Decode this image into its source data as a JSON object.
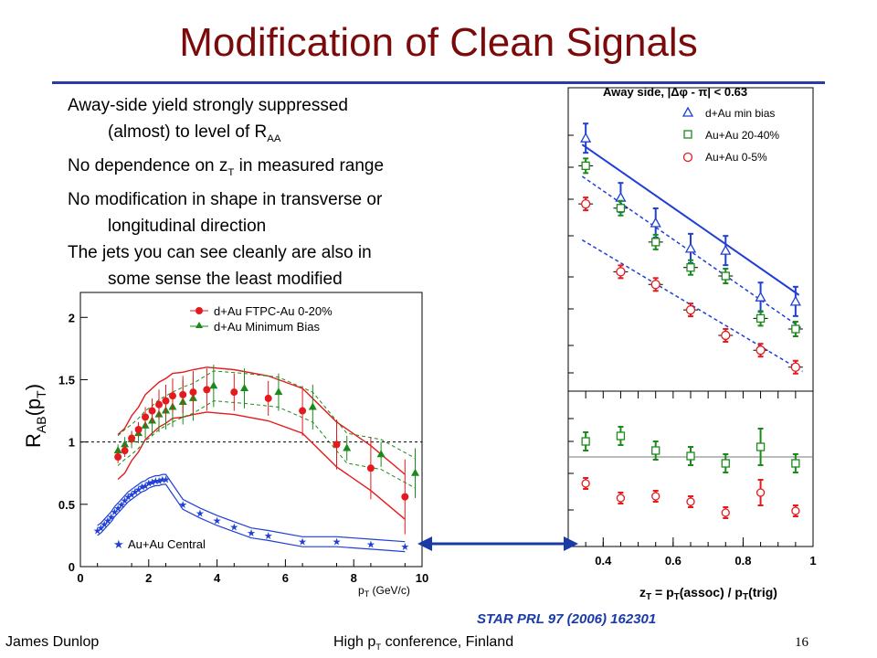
{
  "slide": {
    "title": "Modification of Clean Signals",
    "footer_left": "James Dunlop",
    "footer_center_prefix": "High p",
    "footer_center_sub": "T",
    "footer_center_suffix": " conference, Finland",
    "page_number": "16",
    "citation": "STAR PRL 97 (2006) 162301"
  },
  "bullets": {
    "b1_line1": "Away-side yield strongly suppressed",
    "b1_line2_prefix": "(almost) to level of R",
    "b1_line2_sub": "AA",
    "b2_prefix": "No dependence on z",
    "b2_sub": "T",
    "b2_suffix": " in measured range",
    "b3_line1": "No modification in shape in transverse or",
    "b3_line2": "longitudinal direction",
    "b4_line1": "The jets you can see cleanly are also in",
    "b4_line2": "some sense the least modified"
  },
  "colors": {
    "title": "#7b0a0a",
    "red": "#e41a1c",
    "green": "#1a8a1a",
    "blue": "#1f3fd6",
    "arrow": "#1a3aa8"
  },
  "chart_data": [
    {
      "type": "scatter",
      "ylabel_main": "R",
      "ylabel_sub": "AB",
      "ylabel_suffix": "(p",
      "ylabel_sub2": "T",
      "ylabel_end": ")",
      "xlabel_main": "p",
      "xlabel_sub": "T",
      "xlabel_suffix": " (GeV/c)",
      "xlim": [
        0,
        10
      ],
      "ylim": [
        0,
        2.2
      ],
      "x_ticks": [
        "0",
        "2",
        "4",
        "6",
        "8",
        "10"
      ],
      "y_ticks": [
        "0",
        "0.5",
        "1",
        "1.5",
        "2"
      ],
      "reference_line": 1,
      "legend_position": "top-right",
      "series": [
        {
          "name": "d+Au FTPC-Au 0-20%",
          "marker": "circle",
          "color": "#e41a1c",
          "x": [
            1.1,
            1.3,
            1.5,
            1.7,
            1.9,
            2.1,
            2.3,
            2.5,
            2.7,
            3.0,
            3.3,
            3.7,
            4.5,
            5.5,
            6.5,
            7.5,
            8.5,
            9.5
          ],
          "y": [
            0.88,
            0.93,
            1.03,
            1.1,
            1.2,
            1.25,
            1.3,
            1.33,
            1.37,
            1.38,
            1.4,
            1.42,
            1.4,
            1.35,
            1.25,
            0.98,
            0.79,
            0.56
          ],
          "err": [
            0.05,
            0.05,
            0.05,
            0.06,
            0.08,
            0.1,
            0.12,
            0.13,
            0.14,
            0.15,
            0.17,
            0.17,
            0.15,
            0.14,
            0.2,
            0.2,
            0.25,
            0.3
          ]
        },
        {
          "name": "d+Au Minimum Bias",
          "marker": "triangle",
          "color": "#1a8a1a",
          "x": [
            1.1,
            1.3,
            1.5,
            1.7,
            1.9,
            2.1,
            2.3,
            2.5,
            2.7,
            3.0,
            3.3,
            3.9,
            4.8,
            5.8,
            6.8,
            7.8,
            8.8,
            9.8
          ],
          "y": [
            0.93,
            0.98,
            1.02,
            1.07,
            1.13,
            1.17,
            1.22,
            1.25,
            1.28,
            1.32,
            1.35,
            1.45,
            1.43,
            1.4,
            1.28,
            0.95,
            0.9,
            0.75
          ],
          "err": [
            0.05,
            0.06,
            0.07,
            0.08,
            0.1,
            0.12,
            0.14,
            0.15,
            0.16,
            0.18,
            0.18,
            0.17,
            0.16,
            0.15,
            0.18,
            0.1,
            0.1,
            0.2
          ]
        },
        {
          "name": "Au+Au Central",
          "marker": "star",
          "color": "#1f3fd6",
          "x": [
            0.5,
            0.6,
            0.7,
            0.8,
            0.9,
            1.0,
            1.1,
            1.2,
            1.3,
            1.4,
            1.5,
            1.6,
            1.7,
            1.8,
            1.9,
            2.0,
            2.1,
            2.2,
            2.3,
            2.4,
            2.5,
            3.0,
            3.5,
            4.0,
            4.5,
            5.0,
            5.5,
            6.5,
            7.5,
            8.5,
            9.5
          ],
          "y": [
            0.29,
            0.31,
            0.34,
            0.37,
            0.4,
            0.44,
            0.47,
            0.5,
            0.53,
            0.56,
            0.58,
            0.6,
            0.62,
            0.64,
            0.65,
            0.67,
            0.68,
            0.69,
            0.69,
            0.7,
            0.7,
            0.5,
            0.43,
            0.37,
            0.32,
            0.27,
            0.25,
            0.2,
            0.2,
            0.18,
            0.16
          ]
        }
      ]
    },
    {
      "type": "scatter",
      "panel_label_prefix": "Away side, |",
      "panel_label_mid": "Δφ",
      "panel_label_suffix": " - π| < 0.63",
      "xlabel": "z",
      "xlabel_sub": "T",
      "xlabel_mid": " = p",
      "xlabel_sub2": "T",
      "xlabel_mid2": "(assoc) / p",
      "xlabel_sub3": "T",
      "xlabel_end": "(trig)",
      "xlim": [
        0.3,
        1.0
      ],
      "x_ticks": [
        "0.4",
        "0.6",
        "0.8",
        "1"
      ],
      "legend_position": "top-right",
      "series": [
        {
          "name": "d+Au min bias",
          "marker": "open-triangle",
          "color": "#1f3fd6",
          "x": [
            0.35,
            0.45,
            0.55,
            0.65,
            0.75,
            0.85,
            0.95
          ],
          "y": [
            1.0,
            0.72,
            0.6,
            0.48,
            0.47,
            0.25,
            0.23
          ]
        },
        {
          "name": "Au+Au 20-40%",
          "marker": "open-square",
          "color": "#1a8a1a",
          "x": [
            0.35,
            0.45,
            0.55,
            0.65,
            0.75,
            0.85,
            0.95
          ],
          "y": [
            0.87,
            0.67,
            0.51,
            0.39,
            0.35,
            0.15,
            0.1
          ]
        },
        {
          "name": "Au+Au 0-5%",
          "marker": "open-circle",
          "color": "#e41a1c",
          "x": [
            0.35,
            0.45,
            0.55,
            0.65,
            0.75,
            0.85,
            0.95
          ],
          "y": [
            0.69,
            0.37,
            0.31,
            0.19,
            0.07,
            0.0,
            -0.08
          ]
        }
      ],
      "ratio_series": [
        {
          "name": "Au+Au 20-40%",
          "color": "#1a8a1a",
          "x": [
            0.35,
            0.45,
            0.55,
            0.65,
            0.75,
            0.85,
            0.95
          ],
          "y": [
            0.55,
            0.58,
            0.5,
            0.47,
            0.43,
            0.52,
            0.43
          ]
        },
        {
          "name": "Au+Au 0-5%",
          "color": "#e41a1c",
          "x": [
            0.35,
            0.45,
            0.55,
            0.65,
            0.75,
            0.85,
            0.95
          ],
          "y": [
            0.32,
            0.24,
            0.25,
            0.22,
            0.16,
            0.27,
            0.17
          ]
        }
      ]
    }
  ]
}
